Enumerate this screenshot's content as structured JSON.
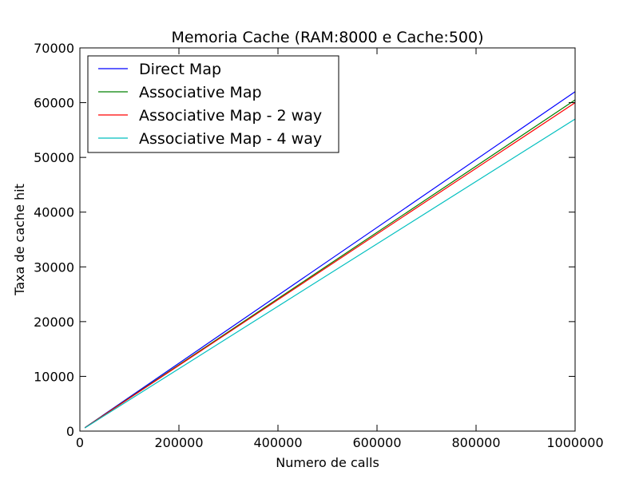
{
  "chart_data": {
    "type": "line",
    "title": "Memoria Cache (RAM:8000 e Cache:500)",
    "xlabel": "Numero de calls",
    "ylabel": "Taxa de cache hit",
    "xlim": [
      0,
      1000000
    ],
    "ylim": [
      0,
      70000
    ],
    "xticks": [
      0,
      200000,
      400000,
      600000,
      800000,
      1000000
    ],
    "yticks": [
      0,
      10000,
      20000,
      30000,
      40000,
      50000,
      60000,
      70000
    ],
    "grid": false,
    "legend_position": "top-left",
    "series": [
      {
        "name": "Direct Map",
        "color": "#0000ff",
        "x": [
          10000,
          1000000
        ],
        "y": [
          620,
          62000
        ]
      },
      {
        "name": "Associative Map",
        "color": "#008000",
        "x": [
          10000,
          1000000
        ],
        "y": [
          605,
          60500
        ]
      },
      {
        "name": "Associative Map - 2 way",
        "color": "#ff0000",
        "x": [
          10000,
          1000000
        ],
        "y": [
          600,
          60000
        ]
      },
      {
        "name": "Associative Map - 4 way",
        "color": "#00bfbf",
        "x": [
          10000,
          1000000
        ],
        "y": [
          570,
          57000
        ]
      }
    ]
  }
}
